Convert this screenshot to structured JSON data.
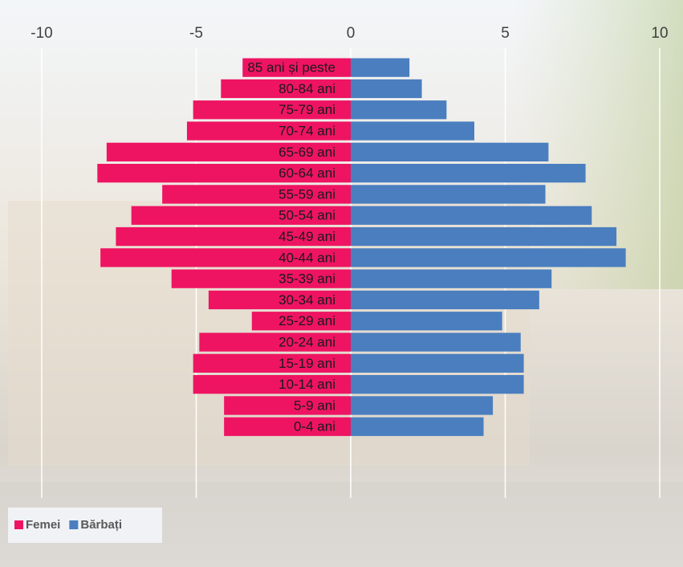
{
  "chart_data": {
    "type": "pyramid",
    "categories": [
      "85 ani și peste",
      "80-84 ani",
      "75-79 ani",
      "70-74 ani",
      "65-69 ani",
      "60-64 ani",
      "55-59 ani",
      "50-54 ani",
      "45-49 ani",
      "40-44 ani",
      "35-39 ani",
      "30-34 ani",
      "25-29 ani",
      "20-24 ani",
      "15-19 ani",
      "10-14 ani",
      "5-9 ani",
      "0-4 ani"
    ],
    "series": [
      {
        "name": "Femei",
        "color": "#ee1462",
        "values": [
          -3.5,
          -4.2,
          -5.1,
          -5.3,
          -7.9,
          -8.2,
          -6.1,
          -7.1,
          -7.6,
          -8.1,
          -5.8,
          -4.6,
          -3.2,
          -4.9,
          -5.1,
          -5.1,
          -4.1,
          -4.1
        ]
      },
      {
        "name": "Bărbați",
        "color": "#4a7ebf",
        "values": [
          1.9,
          2.3,
          3.1,
          4.0,
          6.4,
          7.6,
          6.3,
          7.8,
          8.6,
          8.9,
          6.5,
          6.1,
          4.9,
          5.5,
          5.6,
          5.6,
          4.6,
          4.3
        ]
      }
    ],
    "xlim": [
      -10,
      10
    ],
    "xticks": [
      -10,
      -5,
      0,
      5,
      10
    ],
    "grid": true,
    "legend": "bottom-left"
  }
}
